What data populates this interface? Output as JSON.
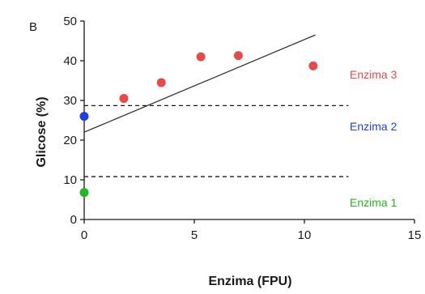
{
  "chart_data": {
    "type": "scatter",
    "panel_label": "B",
    "title": "",
    "xlabel": "Enzima (FPU)",
    "ylabel": "Glicose (%)",
    "xlim": [
      0,
      15
    ],
    "ylim": [
      0,
      50
    ],
    "x_ticks": [
      0,
      5,
      10,
      15
    ],
    "y_ticks": [
      0,
      10,
      20,
      30,
      40,
      50
    ],
    "grid": false,
    "series": [
      {
        "name": "Enzima 3",
        "color": "#e84a4a",
        "x": [
          1.8,
          3.5,
          5.3,
          7.0,
          10.4
        ],
        "y": [
          30.5,
          34.5,
          41.0,
          41.3,
          38.7
        ]
      },
      {
        "name": "Enzima 2",
        "color": "#1f3fe0",
        "x": [
          0
        ],
        "y": [
          26.0
        ]
      },
      {
        "name": "Enzima 1",
        "color": "#22b822",
        "x": [
          0
        ],
        "y": [
          6.8
        ]
      }
    ],
    "fit_line": {
      "x": [
        0,
        10.5
      ],
      "y": [
        22.0,
        46.5
      ],
      "color": "#333333"
    },
    "reference_lines": [
      {
        "y": 28.7,
        "x_end": 12,
        "style": "dashed"
      },
      {
        "y": 10.8,
        "x_end": 12,
        "style": "dashed"
      }
    ],
    "annotations": [
      {
        "text": "Enzima 3",
        "y": 35.5,
        "color": "#e84a4a"
      },
      {
        "text": "Enzima 2",
        "y": 22.4,
        "color": "#1f3fe0"
      },
      {
        "text": "Enzima 1",
        "y": 3.3,
        "color": "#22b822"
      }
    ]
  }
}
